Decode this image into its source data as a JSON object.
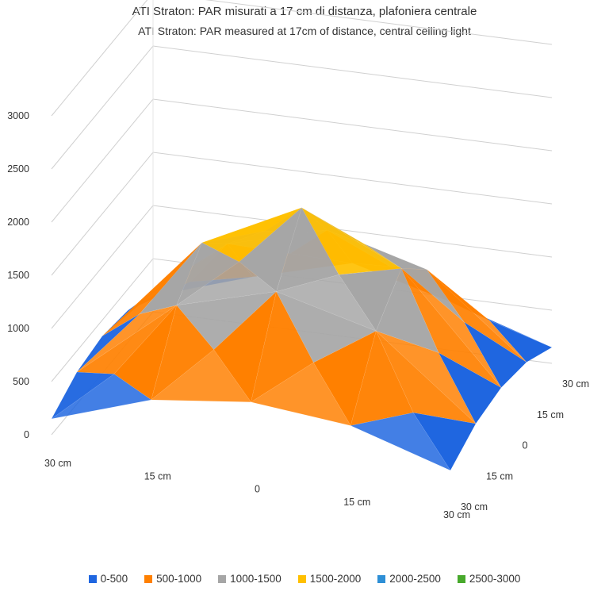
{
  "chart_data": {
    "type": "surface-3d",
    "title": "ATI Straton: PAR misurati a 17 cm di distanza, plafoniera centrale",
    "subtitle": "ATI Straton: PAR measured at 17cm of distance, central ceiling light",
    "z_ticks": [
      "0",
      "500",
      "1000",
      "1500",
      "2000",
      "2500",
      "3000"
    ],
    "zlim": [
      0,
      3000
    ],
    "x_ticks": [
      "30 cm",
      "15 cm",
      "0",
      "15 cm",
      "30 cm"
    ],
    "y_ticks": [
      "30 cm",
      "15 cm",
      "0",
      "15 cm",
      "30 cm"
    ],
    "x_positions": [
      -30,
      -15,
      0,
      15,
      30
    ],
    "y_positions": [
      -30,
      -15,
      0,
      15,
      30
    ],
    "z_values": [
      [
        150,
        300,
        350,
        300,
        150
      ],
      [
        450,
        1050,
        1350,
        1050,
        450
      ],
      [
        700,
        1300,
        1800,
        1300,
        550
      ],
      [
        450,
        1050,
        1350,
        1050,
        450
      ],
      [
        150,
        300,
        350,
        300,
        150
      ]
    ],
    "legend": [
      {
        "label": "0-500",
        "color": "#1f66e0"
      },
      {
        "label": "500-1000",
        "color": "#ff8000"
      },
      {
        "label": "1000-1500",
        "color": "#a6a6a6"
      },
      {
        "label": "1500-2000",
        "color": "#ffc000"
      },
      {
        "label": "2000-2500",
        "color": "#2e8fd6"
      },
      {
        "label": "2500-3000",
        "color": "#48a92c"
      }
    ],
    "legend_position": "bottom",
    "grid": true
  }
}
